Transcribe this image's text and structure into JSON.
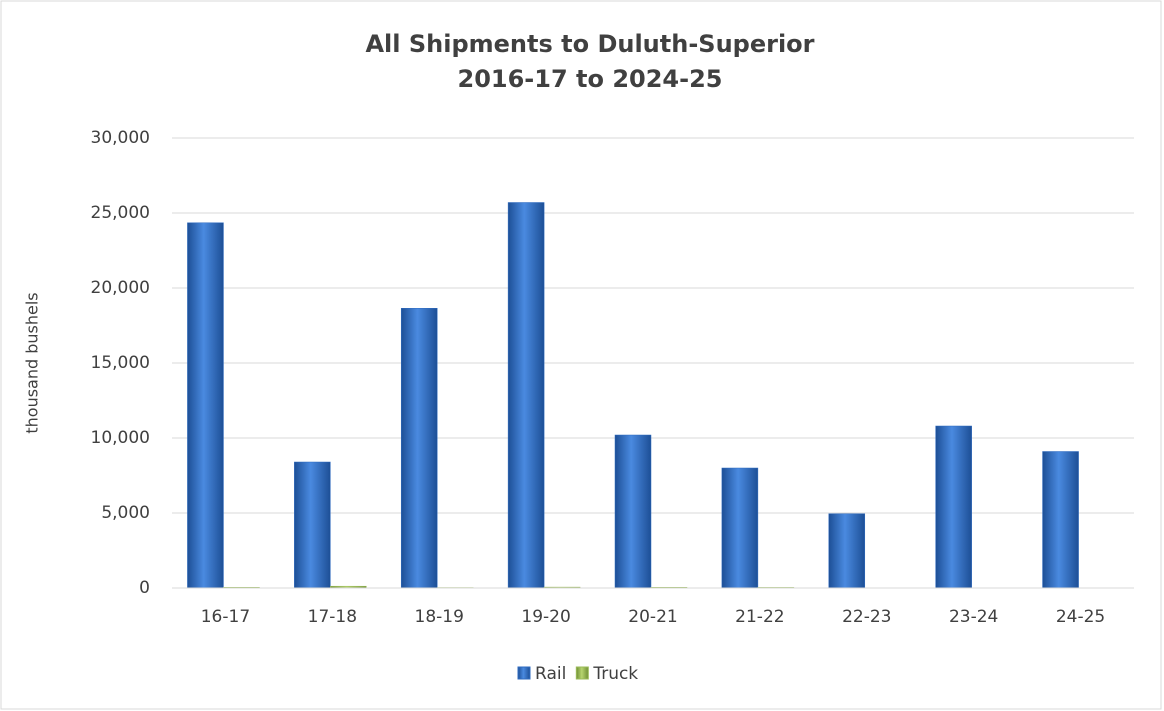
{
  "chart_data": {
    "type": "bar",
    "title": "All Shipments to Duluth-Superior",
    "subtitle": "2016-17 to 2024-25",
    "y_label": "thousand bushels",
    "categories": [
      "16-17",
      "17-18",
      "18-19",
      "19-20",
      "20-21",
      "21-22",
      "22-23",
      "23-24",
      "24-25"
    ],
    "series": [
      {
        "name": "Rail",
        "color": "#2f6bc0",
        "values": [
          24350,
          8400,
          18650,
          25700,
          10200,
          8000,
          4950,
          10800,
          9100
        ]
      },
      {
        "name": "Truck",
        "color": "#9bbb59",
        "values": [
          50,
          120,
          30,
          60,
          50,
          40,
          10,
          10,
          10
        ]
      }
    ],
    "ylim": [
      0,
      30000
    ],
    "yticks": [
      {
        "value": 0,
        "label": "0"
      },
      {
        "value": 5000,
        "label": "5,000"
      },
      {
        "value": 10000,
        "label": "10,000"
      },
      {
        "value": 15000,
        "label": "15,000"
      },
      {
        "value": 20000,
        "label": "20,000"
      },
      {
        "value": 25000,
        "label": "25,000"
      },
      {
        "value": 30000,
        "label": "30,000"
      }
    ],
    "grid": true,
    "legend": "bottom"
  }
}
